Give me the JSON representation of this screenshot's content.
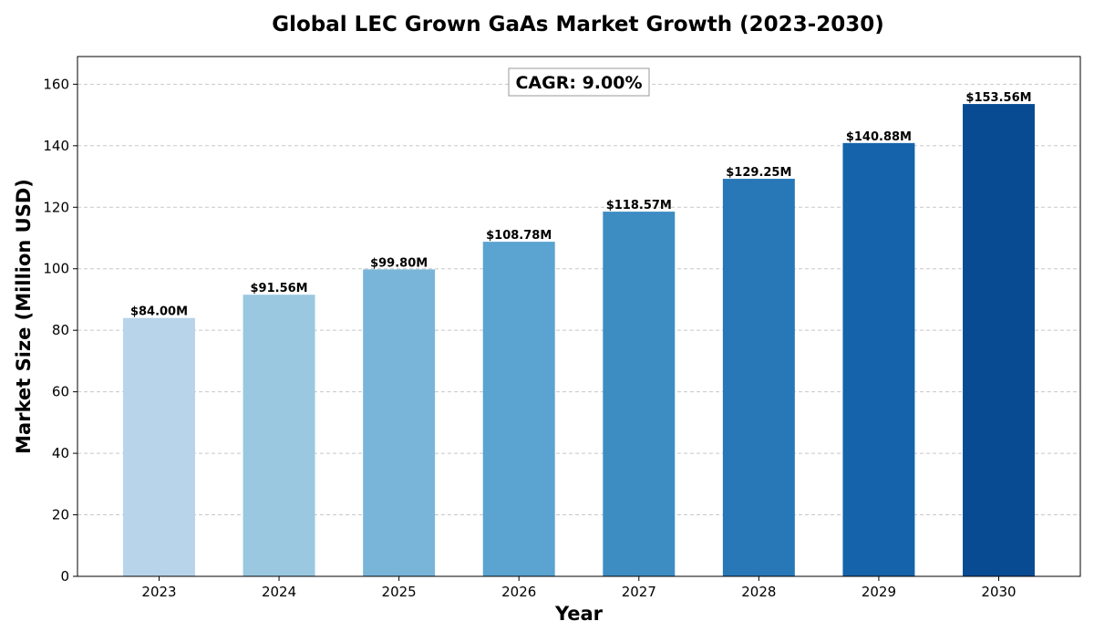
{
  "chart_data": {
    "type": "bar",
    "title": "Global LEC Grown GaAs Market Growth (2023-2030)",
    "xlabel": "Year",
    "ylabel": "Market Size (Million USD)",
    "categories": [
      "2023",
      "2024",
      "2025",
      "2026",
      "2027",
      "2028",
      "2029",
      "2030"
    ],
    "values": [
      84.0,
      91.56,
      99.8,
      108.78,
      118.57,
      129.25,
      140.88,
      153.56
    ],
    "data_labels": [
      "$84.00M",
      "$91.56M",
      "$99.80M",
      "$108.78M",
      "$118.57M",
      "$129.25M",
      "$140.88M",
      "$153.56M"
    ],
    "bar_colors": [
      "#b7d4ea",
      "#9ac8e0",
      "#79b5d9",
      "#5ba3d0",
      "#3d8dc3",
      "#2878b8",
      "#1563aa",
      "#084b93"
    ],
    "ylim": [
      0,
      169
    ],
    "yticks": [
      0,
      20,
      40,
      60,
      80,
      100,
      120,
      140,
      160
    ],
    "grid": "y-dashed",
    "annotation": "CAGR: 9.00%"
  }
}
